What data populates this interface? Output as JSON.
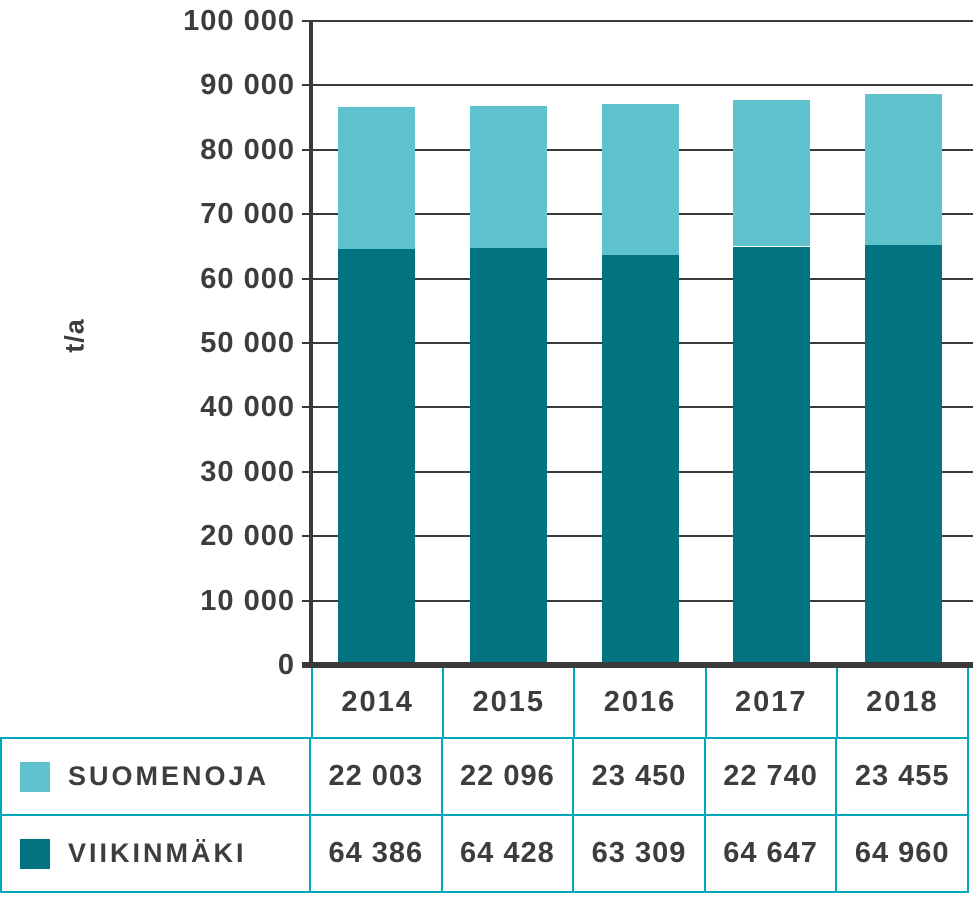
{
  "chart_data": {
    "type": "bar",
    "stacked": true,
    "categories": [
      "2014",
      "2015",
      "2016",
      "2017",
      "2018"
    ],
    "series": [
      {
        "name": "SUOMENOJA",
        "color": "#5FC3CD",
        "values": [
          22003,
          22096,
          23450,
          22740,
          23455
        ],
        "values_formatted": [
          "22 003",
          "22 096",
          "23 450",
          "22 740",
          "23 455"
        ]
      },
      {
        "name": "VIIKINMÄKI",
        "color": "#027380",
        "values": [
          64386,
          64428,
          63309,
          64647,
          64960
        ],
        "values_formatted": [
          "64 386",
          "64 428",
          "63 309",
          "64 647",
          "64 960"
        ]
      }
    ],
    "stack_order_bottom_to_top": [
      "VIIKINMÄKI",
      "SUOMENOJA"
    ],
    "title": "",
    "xlabel": "",
    "ylabel": "t/a",
    "ylim": [
      0,
      100000
    ],
    "ytick_step": 10000,
    "y_tick_labels": [
      "0",
      "10 000",
      "20 000",
      "30 000",
      "40 000",
      "50 000",
      "60 000",
      "70 000",
      "80 000",
      "90 000",
      "100 000"
    ],
    "grid": true,
    "legend_position": "bottom-table"
  },
  "colors": {
    "suomenoja": "#5FC3CD",
    "viikinmaki": "#027380",
    "table_border": "#00A9B8",
    "axis_line": "#3A3A3A",
    "text": "#3D3D3D",
    "background": "#FFFFFF"
  }
}
